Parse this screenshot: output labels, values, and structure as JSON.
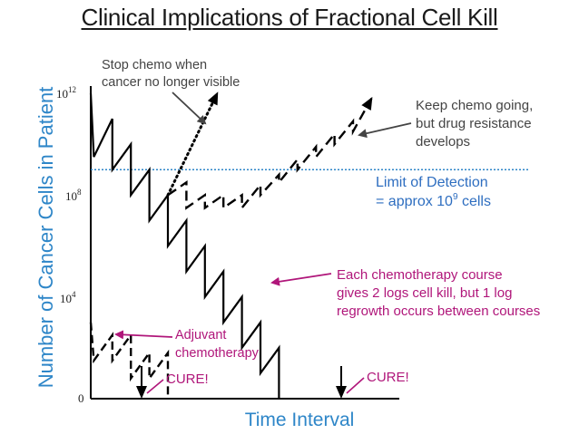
{
  "title": "Clinical Implications of Fractional Cell Kill",
  "chart_data": {
    "type": "line",
    "xlabel": "Time Interval",
    "ylabel": "Number of Cancer Cells in Patient",
    "yscale": "log10",
    "ylim": [
      0,
      12.5
    ],
    "xlim": [
      0,
      100
    ],
    "yticks": [
      {
        "value": 12,
        "base": "10",
        "exp": "12"
      },
      {
        "value": 8,
        "base": "10",
        "exp": "8"
      },
      {
        "value": 4,
        "base": "10",
        "exp": "4"
      },
      {
        "value": 0,
        "base": "0",
        "exp": ""
      }
    ],
    "detection_limit": {
      "log10": 9,
      "label_line1": "Limit of Detection",
      "label_line2_prefix": "= approx 10",
      "label_line2_exp": "9",
      "label_line2_suffix": " cells"
    },
    "series": [
      {
        "name": "Chemotherapy courses to cure (2 log kill, 1 log regrowth)",
        "style": "solid",
        "points": [
          [
            0,
            12
          ],
          [
            1,
            9.5
          ],
          [
            7,
            11
          ],
          [
            7,
            9
          ],
          [
            13,
            10
          ],
          [
            13,
            8
          ],
          [
            19,
            9
          ],
          [
            19,
            7
          ],
          [
            25,
            8
          ],
          [
            25,
            6
          ],
          [
            31,
            7
          ],
          [
            31,
            5
          ],
          [
            37,
            6
          ],
          [
            37,
            4
          ],
          [
            43,
            5
          ],
          [
            43,
            3
          ],
          [
            49,
            4
          ],
          [
            49,
            2
          ],
          [
            55,
            3
          ],
          [
            55,
            1
          ],
          [
            61,
            2
          ],
          [
            61,
            0
          ]
        ]
      },
      {
        "name": "Stop chemo when cancer no longer visible",
        "style": "dotted",
        "points": [
          [
            25,
            8
          ],
          [
            41,
            12
          ]
        ]
      },
      {
        "name": "Keep chemo going, but drug resistance develops",
        "style": "dashed",
        "points": [
          [
            25,
            8
          ],
          [
            31,
            8.5
          ],
          [
            31,
            7.5
          ],
          [
            37,
            8
          ],
          [
            37,
            7.5
          ],
          [
            43,
            8
          ],
          [
            43,
            7.5
          ],
          [
            49,
            8
          ],
          [
            49,
            7.5
          ],
          [
            55,
            8.4
          ],
          [
            55,
            8
          ],
          [
            61,
            8.8
          ],
          [
            61,
            8.5
          ],
          [
            67,
            9.4
          ],
          [
            67,
            9
          ],
          [
            73,
            9.9
          ],
          [
            73,
            9.5
          ],
          [
            79,
            10.4
          ],
          [
            79,
            10
          ],
          [
            85,
            10.9
          ],
          [
            85,
            10.5
          ],
          [
            91,
            11.8
          ]
        ]
      },
      {
        "name": "Adjuvant chemotherapy",
        "style": "dashed",
        "points": [
          [
            0,
            3
          ],
          [
            1,
            1.5
          ],
          [
            7,
            2.5
          ],
          [
            7,
            1.5
          ],
          [
            13,
            2.5
          ],
          [
            13,
            0.8
          ],
          [
            19,
            1.8
          ],
          [
            19,
            0.8
          ],
          [
            25,
            1.8
          ],
          [
            25,
            0
          ]
        ]
      }
    ],
    "annotations": {
      "stop_chemo": [
        "Stop chemo when",
        "cancer no longer visible"
      ],
      "keep_chemo": [
        "Keep chemo going,",
        "but drug resistance",
        "develops"
      ],
      "course": [
        "Each chemotherapy course",
        "gives 2 logs cell kill, but 1 log",
        "regrowth occurs between courses"
      ],
      "adjuvant": [
        "Adjuvant",
        "chemotherapy"
      ],
      "cure_left": "CURE!",
      "cure_right": "CURE!"
    }
  }
}
